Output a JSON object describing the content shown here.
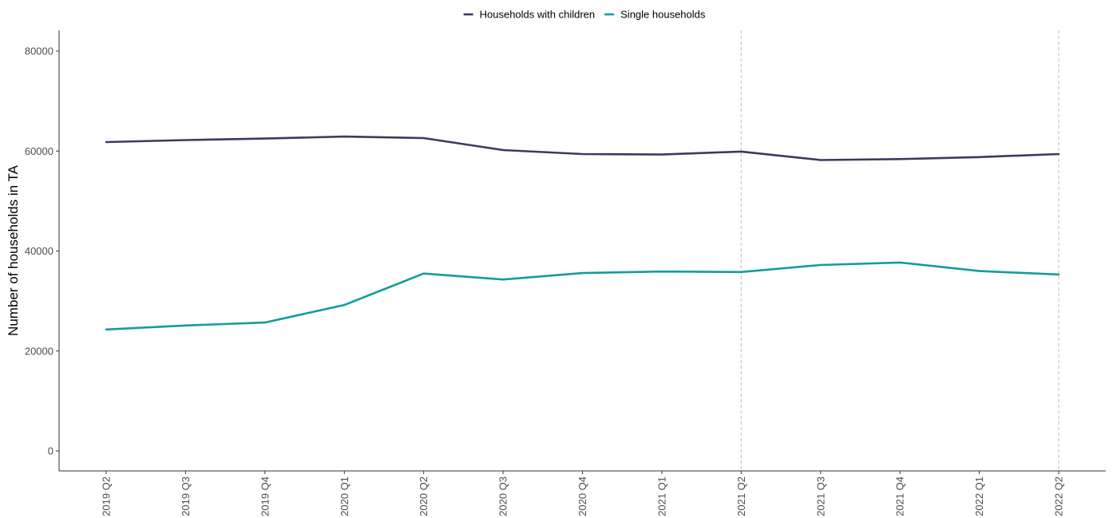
{
  "chart_data": {
    "type": "line",
    "title": "",
    "xlabel": "",
    "ylabel": "Number of households in TA",
    "ylim": [
      0,
      80000
    ],
    "yticks": [
      0,
      20000,
      40000,
      60000,
      80000
    ],
    "grid": false,
    "legend_position": "top",
    "categories": [
      "2019 Q2",
      "2019 Q3",
      "2019 Q4",
      "2020 Q1",
      "2020 Q2",
      "2020 Q3",
      "2020 Q4",
      "2021 Q1",
      "2021 Q2",
      "2021 Q3",
      "2021 Q4",
      "2022 Q1",
      "2022 Q2"
    ],
    "reference_lines": [
      "2021 Q2",
      "2022 Q2"
    ],
    "series": [
      {
        "name": "Households with children",
        "color": "#3b3a5e",
        "values": [
          61800,
          62200,
          62500,
          62900,
          62600,
          60200,
          59400,
          59300,
          59900,
          58200,
          58400,
          58800,
          59400
        ]
      },
      {
        "name": "Single households",
        "color": "#169b9b",
        "values": [
          24300,
          25100,
          25700,
          29200,
          35500,
          34300,
          35600,
          35900,
          35800,
          37200,
          37700,
          36000,
          35300
        ]
      }
    ]
  }
}
